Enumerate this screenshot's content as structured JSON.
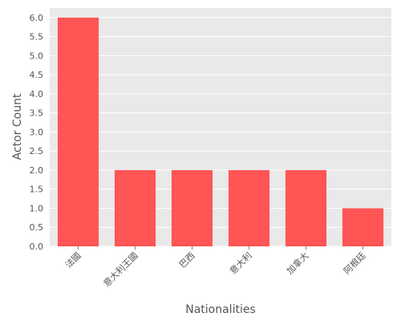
{
  "chart_data": {
    "type": "bar",
    "title": "",
    "xlabel": "Nationalities",
    "ylabel": "Actor Count",
    "categories": [
      "法國",
      "意大利王國",
      "巴西",
      "意大利",
      "加拿大",
      "阿根廷"
    ],
    "values": [
      6,
      2,
      2,
      2,
      2,
      1
    ],
    "ylim": [
      0,
      6.25
    ],
    "yticks": [
      "0.0",
      "0.5",
      "1.0",
      "1.5",
      "2.0",
      "2.5",
      "3.0",
      "3.5",
      "4.0",
      "4.5",
      "5.0",
      "5.5",
      "6.0"
    ],
    "grid": true,
    "legend": "none",
    "colors": {
      "bar": "#ff5555",
      "plot_background": "#e9e9e9",
      "grid": "#ffffff",
      "text": "#555555"
    }
  }
}
